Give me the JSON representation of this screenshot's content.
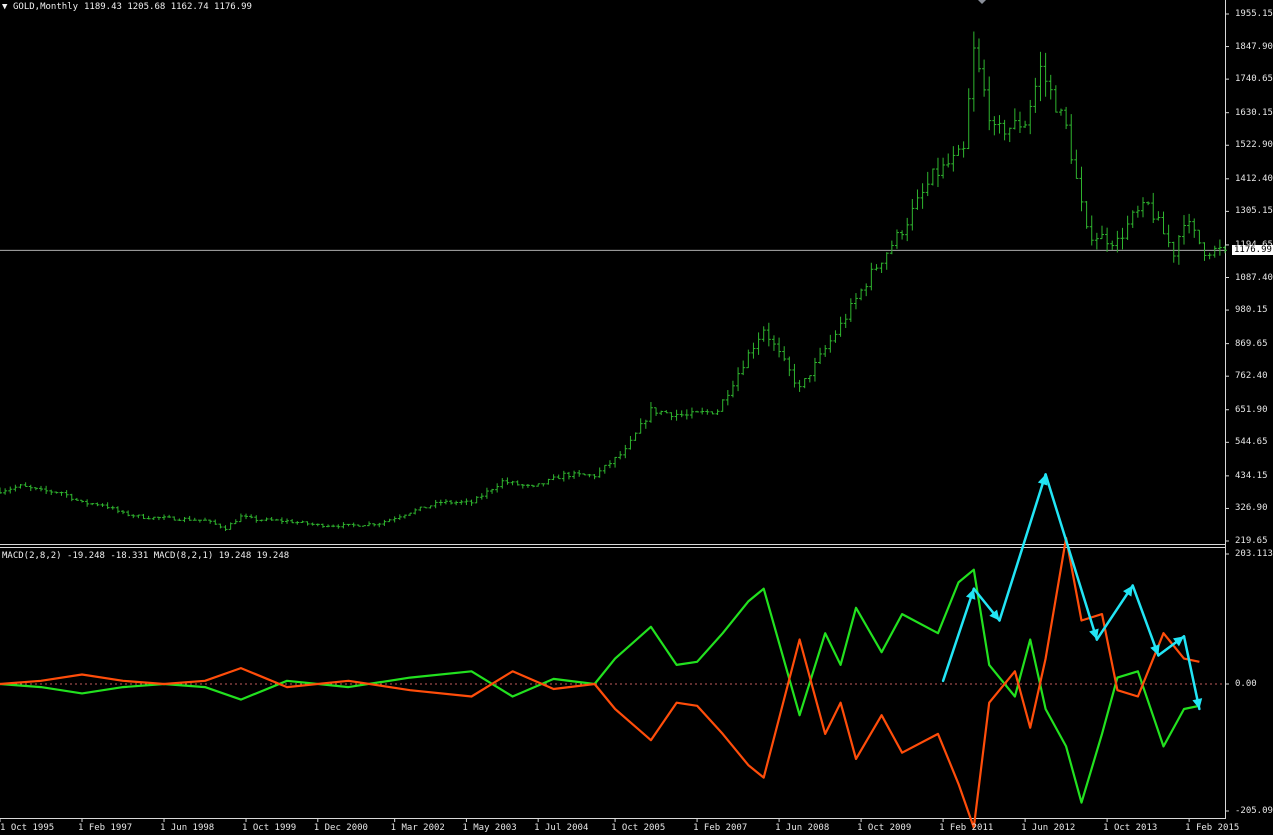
{
  "header": {
    "collapse_icon": "triangle-down-icon",
    "title": "GOLD,Monthly",
    "ohlc": "1189.43 1205.68 1162.74 1176.99",
    "indicator": "MACD(2,8,2) -19.248 -18.331 MACD(8,2,1) 19.248 19.248"
  },
  "colors": {
    "background": "#000000",
    "candle": "#2fb52f",
    "macd_green": "#22e11f",
    "macd_orange": "#ff4d0a",
    "annotation": "#22e5f5",
    "price_line": "#c8c8c8",
    "zero_line": "#ff7a7a"
  },
  "price_axis": {
    "ticks": [
      "1955.15",
      "1847.90",
      "1740.65",
      "1630.15",
      "1522.90",
      "1412.40",
      "1305.15",
      "1194.65",
      "1087.40",
      "980.15",
      "869.65",
      "762.40",
      "651.90",
      "544.65",
      "434.15",
      "326.90",
      "219.65"
    ],
    "current": "1176.99"
  },
  "macd_axis": {
    "ticks": [
      "203.113",
      "0.00",
      "-205.093"
    ]
  },
  "time_axis": {
    "ticks": [
      "1 Oct 1995",
      "1 Feb 1997",
      "1 Jun 1998",
      "1 Oct 1999",
      "1 Dec 2000",
      "1 Mar 2002",
      "1 May 2003",
      "1 Jul 2004",
      "1 Oct 2005",
      "1 Feb 2007",
      "1 Jun 2008",
      "1 Oct 2009",
      "1 Feb 2011",
      "1 Jun 2012",
      "1 Oct 2013",
      "1 Feb 2015"
    ]
  },
  "chart_data": [
    {
      "type": "ohlc",
      "symbol": "GOLD",
      "timeframe": "Monthly",
      "last": {
        "open": 1189.43,
        "high": 1205.68,
        "low": 1162.74,
        "close": 1176.99
      },
      "ylim": [
        219.65,
        1955.15
      ],
      "x_range": [
        "1995-10",
        "2015-05"
      ],
      "close_series": [
        [
          "1995-10",
          385
        ],
        [
          "1996-02",
          400
        ],
        [
          "1996-06",
          385
        ],
        [
          "1996-10",
          380
        ],
        [
          "1997-02",
          345
        ],
        [
          "1997-06",
          340
        ],
        [
          "1997-10",
          310
        ],
        [
          "1998-02",
          298
        ],
        [
          "1998-06",
          295
        ],
        [
          "1998-10",
          292
        ],
        [
          "1999-02",
          287
        ],
        [
          "1999-06",
          262
        ],
        [
          "1999-09",
          300
        ],
        [
          "1999-12",
          290
        ],
        [
          "2000-06",
          285
        ],
        [
          "2000-12",
          272
        ],
        [
          "2001-06",
          270
        ],
        [
          "2001-12",
          278
        ],
        [
          "2002-06",
          315
        ],
        [
          "2002-12",
          347
        ],
        [
          "2003-06",
          346
        ],
        [
          "2003-12",
          416
        ],
        [
          "2004-06",
          395
        ],
        [
          "2004-12",
          438
        ],
        [
          "2005-06",
          435
        ],
        [
          "2005-12",
          517
        ],
        [
          "2006-05",
          650
        ],
        [
          "2006-12",
          632
        ],
        [
          "2007-06",
          650
        ],
        [
          "2007-12",
          835
        ],
        [
          "2008-03",
          920
        ],
        [
          "2008-10",
          720
        ],
        [
          "2009-06",
          930
        ],
        [
          "2009-12",
          1100
        ],
        [
          "2010-06",
          1245
        ],
        [
          "2010-12",
          1420
        ],
        [
          "2011-06",
          1500
        ],
        [
          "2011-08",
          1830
        ],
        [
          "2011-12",
          1565
        ],
        [
          "2012-06",
          1600
        ],
        [
          "2012-09",
          1775
        ],
        [
          "2013-02",
          1580
        ],
        [
          "2013-06",
          1235
        ],
        [
          "2013-12",
          1205
        ],
        [
          "2014-03",
          1285
        ],
        [
          "2014-06",
          1325
        ],
        [
          "2014-11",
          1170
        ],
        [
          "2015-01",
          1280
        ],
        [
          "2015-05",
          1177
        ]
      ]
    },
    {
      "type": "line",
      "indicator": "MACD",
      "ylim": [
        -205.093,
        203.113
      ],
      "series": [
        {
          "name": "MACD(2,8,2)",
          "color": "#22e11f",
          "points": [
            [
              "1995-10",
              0
            ],
            [
              "1996-06",
              -5
            ],
            [
              "1997-02",
              -15
            ],
            [
              "1997-10",
              -5
            ],
            [
              "1998-06",
              0
            ],
            [
              "1999-02",
              -5
            ],
            [
              "1999-09",
              -25
            ],
            [
              "2000-06",
              5
            ],
            [
              "2001-06",
              -5
            ],
            [
              "2002-06",
              10
            ],
            [
              "2003-06",
              20
            ],
            [
              "2004-02",
              -20
            ],
            [
              "2004-10",
              8
            ],
            [
              "2005-06",
              0
            ],
            [
              "2005-10",
              40
            ],
            [
              "2006-05",
              90
            ],
            [
              "2006-10",
              30
            ],
            [
              "2007-02",
              35
            ],
            [
              "2007-07",
              80
            ],
            [
              "2007-12",
              130
            ],
            [
              "2008-03",
              150
            ],
            [
              "2008-10",
              -50
            ],
            [
              "2009-03",
              80
            ],
            [
              "2009-06",
              30
            ],
            [
              "2009-09",
              120
            ],
            [
              "2010-02",
              50
            ],
            [
              "2010-06",
              110
            ],
            [
              "2011-01",
              80
            ],
            [
              "2011-05",
              160
            ],
            [
              "2011-08",
              180
            ],
            [
              "2011-11",
              30
            ],
            [
              "2012-04",
              -20
            ],
            [
              "2012-07",
              70
            ],
            [
              "2012-10",
              -40
            ],
            [
              "2013-02",
              -100
            ],
            [
              "2013-05",
              -190
            ],
            [
              "2013-09",
              -80
            ],
            [
              "2013-12",
              10
            ],
            [
              "2014-04",
              20
            ],
            [
              "2014-09",
              -100
            ],
            [
              "2015-01",
              -40
            ],
            [
              "2015-04",
              -35
            ]
          ]
        },
        {
          "name": "MACD(8,2,1)",
          "color": "#ff4d0a",
          "points": [
            [
              "1995-10",
              0
            ],
            [
              "1996-06",
              5
            ],
            [
              "1997-02",
              15
            ],
            [
              "1997-10",
              5
            ],
            [
              "1998-06",
              0
            ],
            [
              "1999-02",
              5
            ],
            [
              "1999-09",
              25
            ],
            [
              "2000-06",
              -5
            ],
            [
              "2001-06",
              5
            ],
            [
              "2002-06",
              -10
            ],
            [
              "2003-06",
              -20
            ],
            [
              "2004-02",
              20
            ],
            [
              "2004-10",
              -8
            ],
            [
              "2005-06",
              0
            ],
            [
              "2005-10",
              -40
            ],
            [
              "2006-05",
              -90
            ],
            [
              "2006-10",
              -30
            ],
            [
              "2007-02",
              -35
            ],
            [
              "2007-07",
              -80
            ],
            [
              "2007-12",
              -130
            ],
            [
              "2008-03",
              -150
            ],
            [
              "2008-10",
              70
            ],
            [
              "2009-03",
              -80
            ],
            [
              "2009-06",
              -30
            ],
            [
              "2009-09",
              -120
            ],
            [
              "2010-02",
              -50
            ],
            [
              "2010-06",
              -110
            ],
            [
              "2011-01",
              -80
            ],
            [
              "2011-05",
              -160
            ],
            [
              "2011-08",
              -230
            ],
            [
              "2011-11",
              -30
            ],
            [
              "2012-04",
              20
            ],
            [
              "2012-07",
              -70
            ],
            [
              "2012-10",
              40
            ],
            [
              "2013-02",
              230
            ],
            [
              "2013-05",
              100
            ],
            [
              "2013-09",
              110
            ],
            [
              "2013-12",
              -10
            ],
            [
              "2014-04",
              -20
            ],
            [
              "2014-09",
              80
            ],
            [
              "2015-01",
              40
            ],
            [
              "2015-04",
              35
            ]
          ]
        }
      ],
      "annotation_path": [
        [
          "2011-02",
          5
        ],
        [
          "2011-08",
          150
        ],
        [
          "2012-01",
          100
        ],
        [
          "2012-10",
          330
        ],
        [
          "2013-08",
          70
        ],
        [
          "2014-03",
          155
        ],
        [
          "2014-08",
          45
        ],
        [
          "2015-01",
          75
        ],
        [
          "2015-04",
          -40
        ]
      ]
    }
  ]
}
